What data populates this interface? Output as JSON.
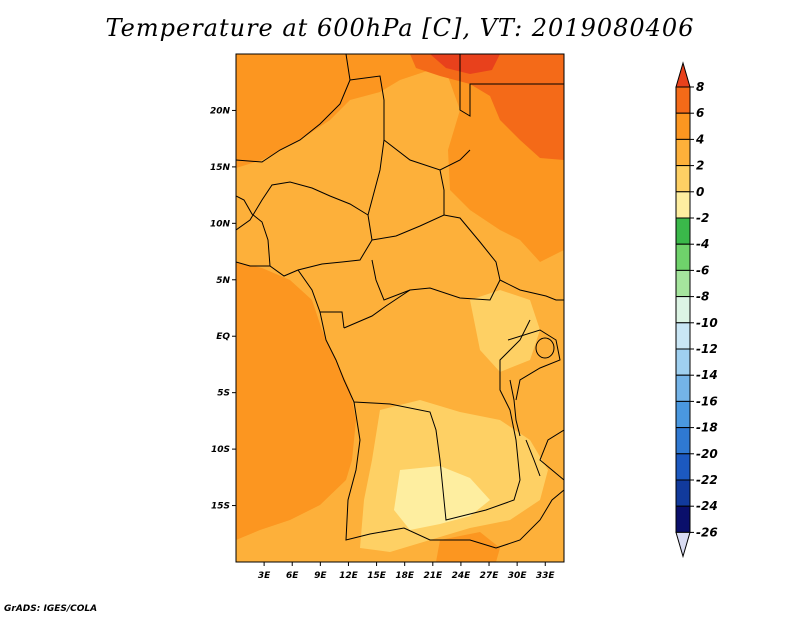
{
  "figure": {
    "title": "Temperature at 600hPa [C], VT: 2019080406",
    "credit": "GrADS: IGES/COLA"
  },
  "map": {
    "lon_range": [
      0,
      35
    ],
    "lat_range": [
      -20,
      25
    ],
    "lat_ticks": [
      {
        "value": 20,
        "label": "20N"
      },
      {
        "value": 15,
        "label": "15N"
      },
      {
        "value": 10,
        "label": "10N"
      },
      {
        "value": 5,
        "label": "5N"
      },
      {
        "value": 0,
        "label": "EQ"
      },
      {
        "value": -5,
        "label": "5S"
      },
      {
        "value": -10,
        "label": "10S"
      },
      {
        "value": -15,
        "label": "15S"
      }
    ],
    "lon_ticks": [
      {
        "value": 3,
        "label": "3E"
      },
      {
        "value": 6,
        "label": "6E"
      },
      {
        "value": 9,
        "label": "9E"
      },
      {
        "value": 12,
        "label": "12E"
      },
      {
        "value": 15,
        "label": "15E"
      },
      {
        "value": 18,
        "label": "18E"
      },
      {
        "value": 21,
        "label": "21E"
      },
      {
        "value": 24,
        "label": "24E"
      },
      {
        "value": 27,
        "label": "27E"
      },
      {
        "value": 30,
        "label": "30E"
      },
      {
        "value": 33,
        "label": "33E"
      }
    ],
    "background_color": "#fdb03a"
  },
  "colorbar": {
    "labels": [
      "8",
      "6",
      "4",
      "2",
      "0",
      "-2",
      "-4",
      "-6",
      "-8",
      "-10",
      "-12",
      "-14",
      "-16",
      "-18",
      "-20",
      "-22",
      "-24",
      "-26"
    ],
    "colors": [
      "#e8411c",
      "#f46a18",
      "#fc9620",
      "#fdb03a",
      "#fed064",
      "#feeea0",
      "#3ab84a",
      "#6fd26b",
      "#a5e59d",
      "#dcf4e4",
      "#c9e6f5",
      "#9fd0f0",
      "#74b4e8",
      "#4a98df",
      "#2f79d2",
      "#1c59c0",
      "#113a9c",
      "#0a0f6b",
      "#d9dcf3"
    ]
  }
}
